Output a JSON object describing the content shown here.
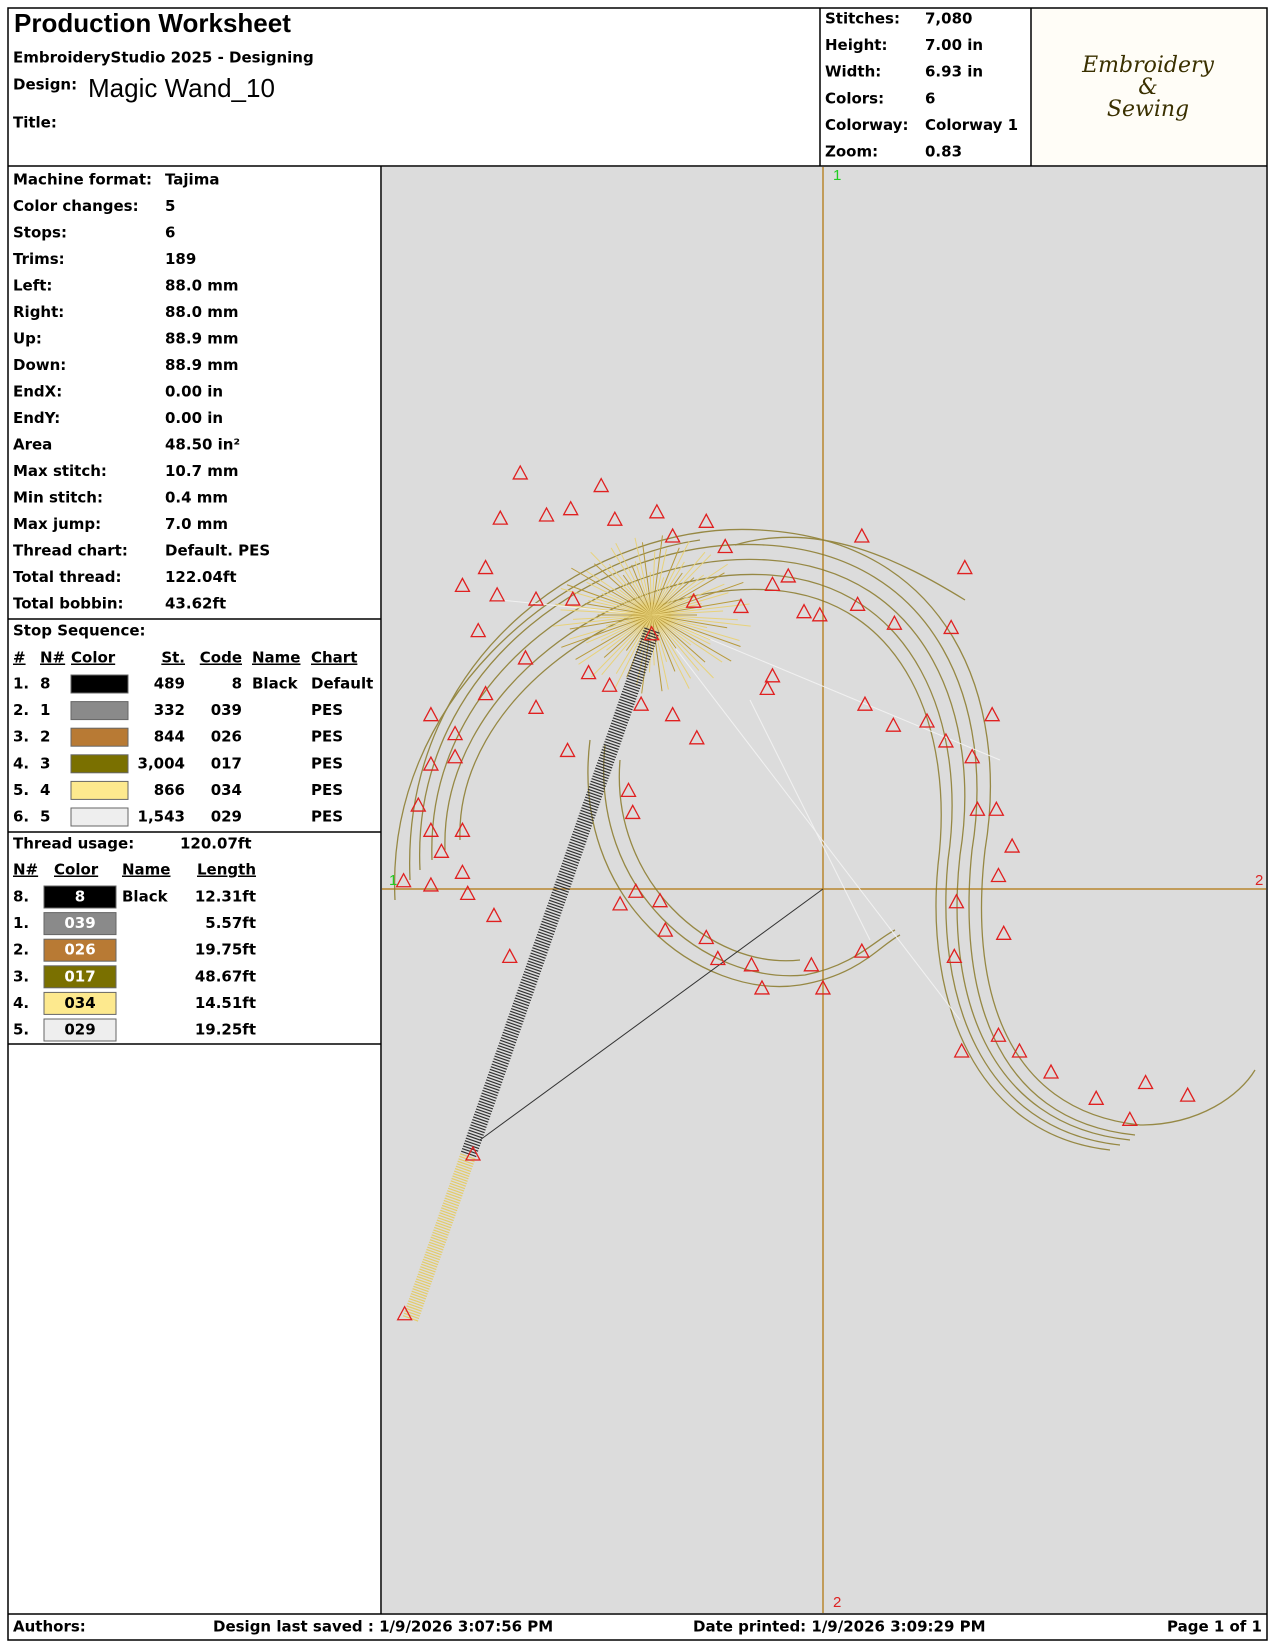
{
  "header": {
    "title": "Production Worksheet",
    "software": "EmbroideryStudio 2025 - Designing",
    "design_label": "Design:",
    "design_name": "Magic Wand_10",
    "title_label": "Title:"
  },
  "summary": [
    {
      "label": "Stitches:",
      "value": "7,080"
    },
    {
      "label": "Height:",
      "value": "7.00 in"
    },
    {
      "label": "Width:",
      "value": "6.93 in"
    },
    {
      "label": "Colors:",
      "value": "6"
    },
    {
      "label": "Colorway:",
      "value": "Colorway 1"
    },
    {
      "label": "Zoom:",
      "value": "0.83"
    }
  ],
  "logo": {
    "lines": [
      "Embroidery",
      "&",
      "Sewing"
    ]
  },
  "machine_info": [
    {
      "label": "Machine format:",
      "value": "Tajima"
    },
    {
      "label": "Color changes:",
      "value": "5"
    },
    {
      "label": "Stops:",
      "value": "6"
    },
    {
      "label": "Trims:",
      "value": "189"
    },
    {
      "label": "Left:",
      "value": "88.0 mm"
    },
    {
      "label": "Right:",
      "value": "88.0 mm"
    },
    {
      "label": "Up:",
      "value": "88.9 mm"
    },
    {
      "label": "Down:",
      "value": "88.9 mm"
    },
    {
      "label": "EndX:",
      "value": "0.00 in"
    },
    {
      "label": "EndY:",
      "value": "0.00 in"
    },
    {
      "label": "Area",
      "value": "48.50 in²"
    },
    {
      "label": "Max stitch:",
      "value": "10.7 mm"
    },
    {
      "label": "Min stitch:",
      "value": "0.4 mm"
    },
    {
      "label": "Max jump:",
      "value": "7.0 mm"
    },
    {
      "label": "Thread chart:",
      "value": "Default. PES"
    },
    {
      "label": "Total thread:",
      "value": "122.04ft"
    },
    {
      "label": "Total bobbin:",
      "value": "43.62ft"
    }
  ],
  "stop_sequence": {
    "heading": "Stop Sequence:",
    "columns": [
      "#",
      "N#",
      "Color",
      "St.",
      "Code",
      "Name",
      "Chart"
    ],
    "rows": [
      {
        "index": "1.",
        "needle": "8",
        "color": "#000000",
        "stitches": "489",
        "code": "8",
        "name": "Black",
        "chart": "Default"
      },
      {
        "index": "2.",
        "needle": "1",
        "color": "#8a8a8a",
        "stitches": "332",
        "code": "039",
        "chart": "PES"
      },
      {
        "index": "3.",
        "needle": "2",
        "color": "#b87a34",
        "stitches": "844",
        "code": "026",
        "chart": "PES"
      },
      {
        "index": "4.",
        "needle": "3",
        "color": "#7a7000",
        "stitches": "3,004",
        "code": "017",
        "chart": "PES"
      },
      {
        "index": "5.",
        "needle": "4",
        "color": "#fde98e",
        "stitches": "866",
        "code": "034",
        "chart": "PES"
      },
      {
        "index": "6.",
        "needle": "5",
        "color": "#eeeeee",
        "stitches": "1,543",
        "code": "029",
        "chart": "PES"
      }
    ]
  },
  "thread_usage": {
    "heading": "Thread usage:",
    "total": "120.07ft",
    "columns": [
      "N#",
      "Color",
      "Name",
      "Length"
    ],
    "rows": [
      {
        "needle": "8.",
        "color": "#000000",
        "code": "8",
        "name": "Black",
        "length": "12.31ft"
      },
      {
        "needle": "1.",
        "color": "#8a8a8a",
        "code": "039",
        "length": "5.57ft"
      },
      {
        "needle": "2.",
        "color": "#b87a34",
        "code": "026",
        "length": "19.75ft"
      },
      {
        "needle": "3.",
        "color": "#7a7000",
        "code": "017",
        "length": "48.67ft"
      },
      {
        "needle": "4.",
        "color": "#fde98e",
        "code": "034",
        "length": "14.51ft"
      },
      {
        "needle": "5.",
        "color": "#eeeeee",
        "code": "029",
        "length": "19.25ft"
      }
    ]
  },
  "design_view": {
    "axis_labels": {
      "top": "1",
      "bottom": "2",
      "left": "1",
      "right": "2"
    }
  },
  "footer": {
    "authors": "Authors:",
    "saved": "Design last saved : 1/9/2026 3:07:56 PM",
    "printed": "Date printed: 1/9/2026 3:09:29 PM",
    "page": "Page 1 of 1"
  }
}
